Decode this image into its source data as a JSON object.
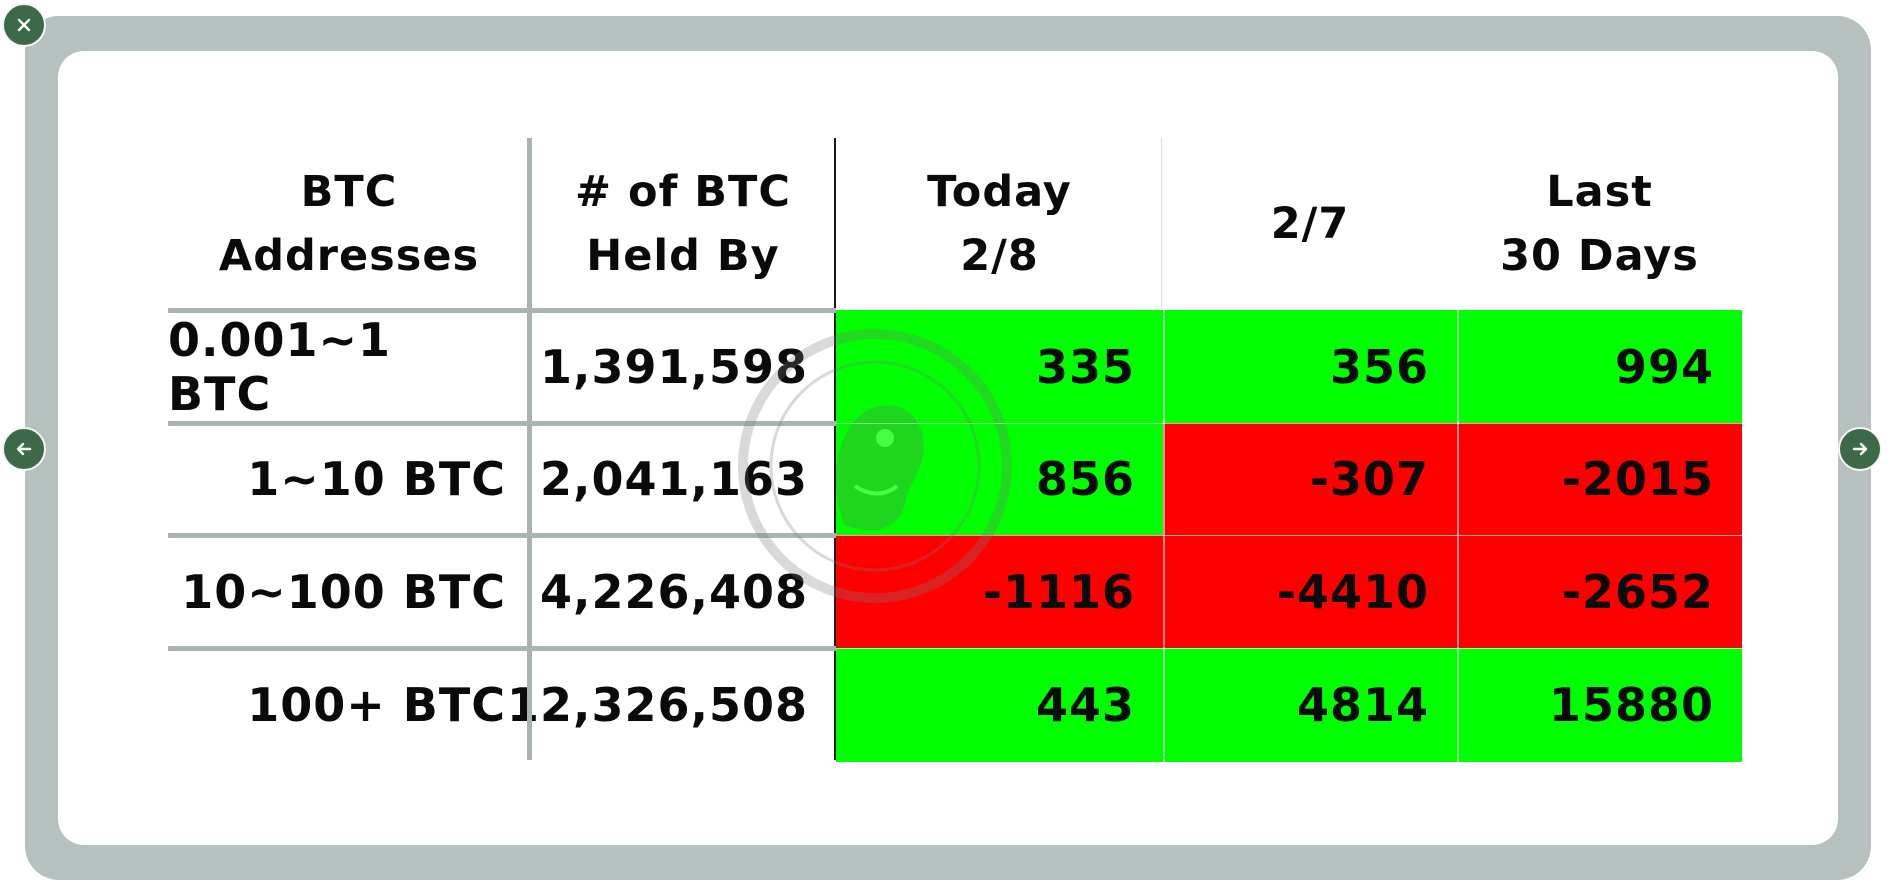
{
  "colors": {
    "positive": "#00ff00",
    "negative": "#ff0000",
    "frame": "#b5c0bf",
    "button": "#3c6a49"
  },
  "controls": {
    "close_icon": "close-icon",
    "prev_icon": "arrow-left-icon",
    "next_icon": "arrow-right-icon"
  },
  "table": {
    "headers": [
      "BTC\nAddresses",
      "# of BTC\nHeld By",
      "Today\n2/8",
      "2/7",
      "Last\n30 Days"
    ],
    "rows": [
      {
        "label": "0.001~1 BTC",
        "held": "1,391,598",
        "today": "335",
        "prev": "356",
        "last30": "994"
      },
      {
        "label": "1~10 BTC",
        "held": "2,041,163",
        "today": "856",
        "prev": "-307",
        "last30": "-2015"
      },
      {
        "label": "10~100 BTC",
        "held": "4,226,408",
        "today": "-1116",
        "prev": "-4410",
        "last30": "-2652"
      },
      {
        "label": "100+ BTC",
        "held": "12,326,508",
        "today": "443",
        "prev": "4814",
        "last30": "15880"
      }
    ]
  }
}
